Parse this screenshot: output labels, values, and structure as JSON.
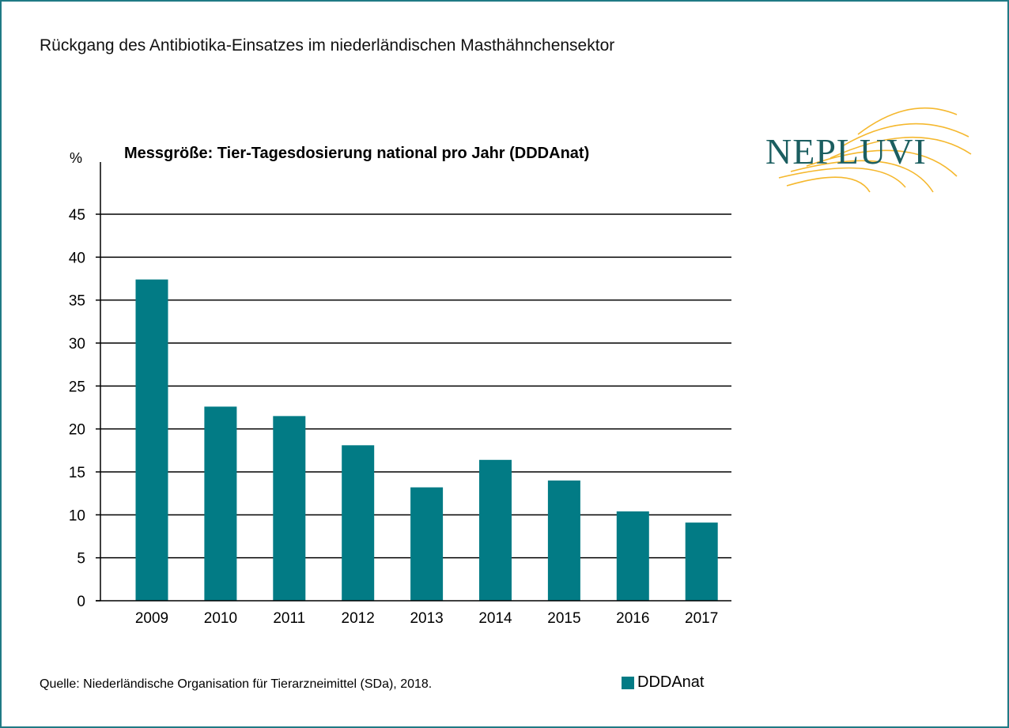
{
  "page_title": "Rückgang des Antibiotika-Einsatzes im niederländischen Masthähnchensektor",
  "logo_text": "NEPLUVI",
  "source": "Quelle: Niederländische Organisation für Tierarzneimittel (SDa), 2018.",
  "colors": {
    "bar": "#027b85",
    "frame": "#1f7a85",
    "logo_text": "#1b5e60",
    "logo_lines": "#f5b82e"
  },
  "chart_data": {
    "type": "bar",
    "title": "Messgröße: Tier-Tagesdosierung national pro Jahr (DDDAnat)",
    "ylabel": "%",
    "xlabel": "",
    "categories": [
      "2009",
      "2010",
      "2011",
      "2012",
      "2013",
      "2014",
      "2015",
      "2016",
      "2017"
    ],
    "series": [
      {
        "name": "DDDAnat",
        "values": [
          37.4,
          22.6,
          21.5,
          18.1,
          13.2,
          16.4,
          14.0,
          10.4,
          9.1
        ]
      }
    ],
    "ylim": [
      0,
      45
    ],
    "yticks": [
      0,
      5,
      10,
      15,
      20,
      25,
      30,
      35,
      40,
      45
    ],
    "grid": true,
    "legend": "bottom-right"
  }
}
